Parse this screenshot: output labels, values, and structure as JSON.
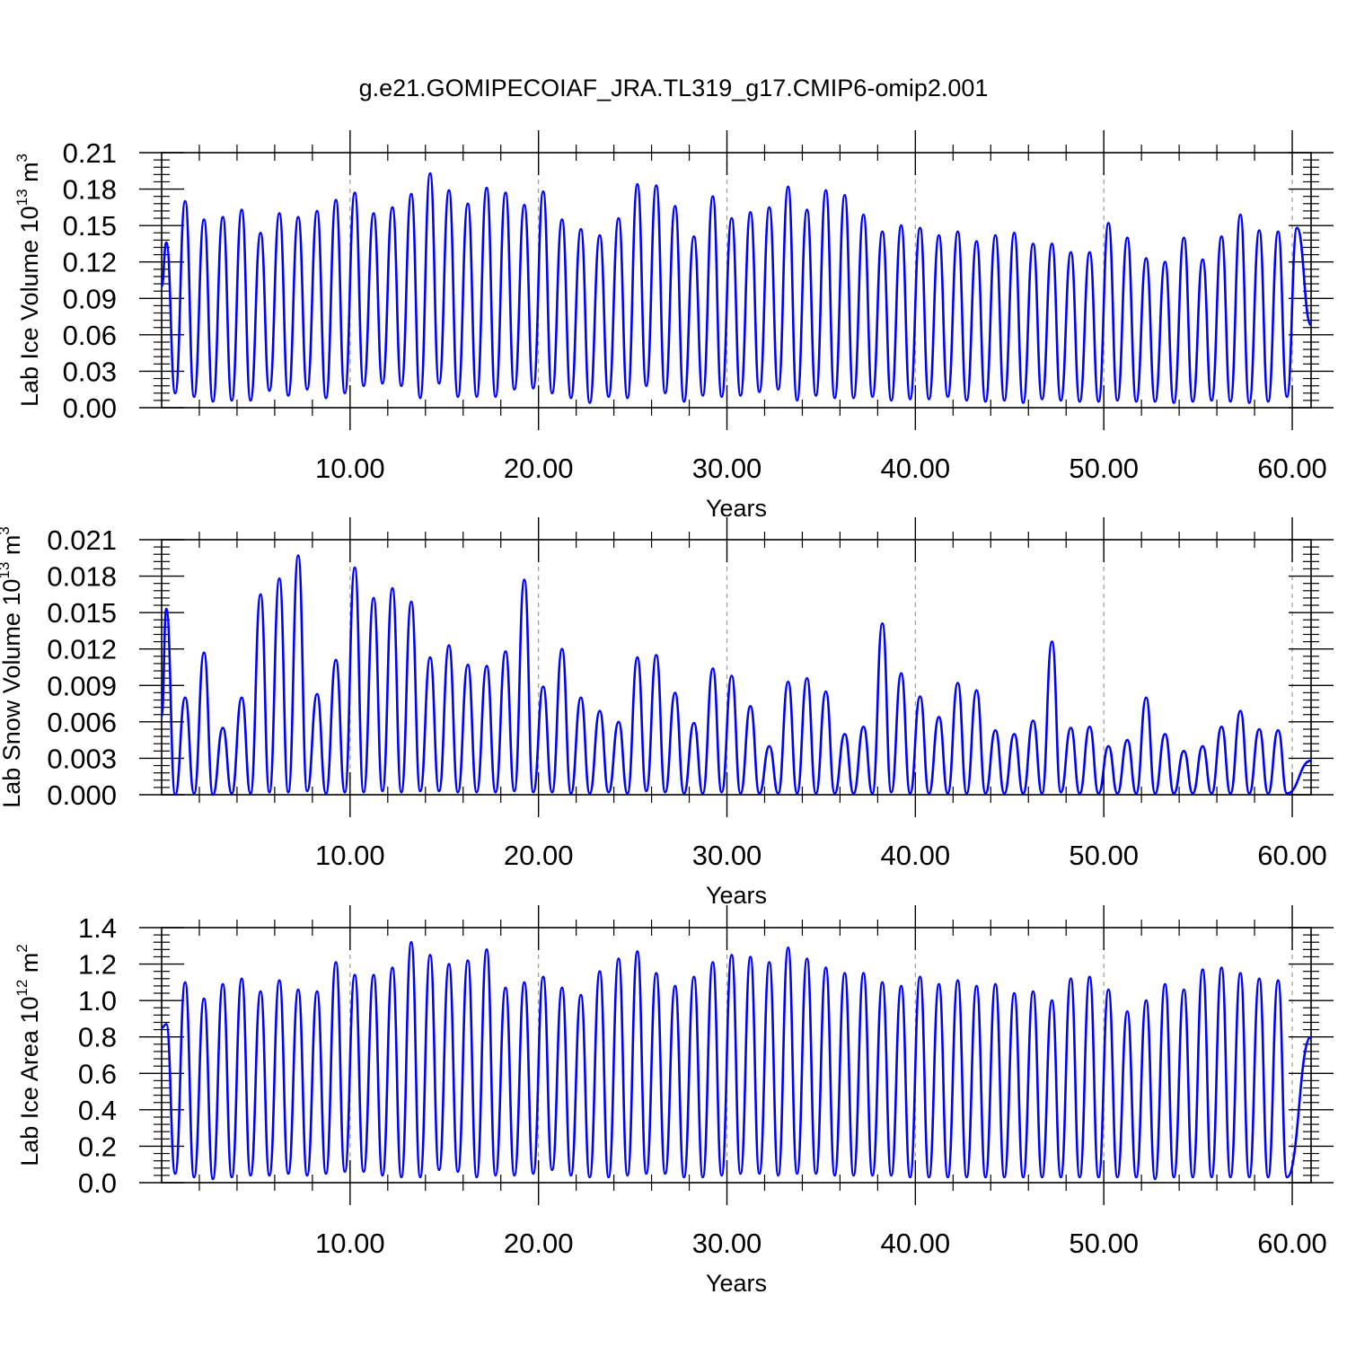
{
  "title": "g.e21.GOMIPECOIAF_JRA.TL319_g17.CMIP6-omip2.001",
  "chart_data": [
    {
      "type": "line",
      "xlabel": "Years",
      "ylabel": {
        "base": "Lab Ice Volume 10",
        "exp": "13",
        "unit": " m",
        "unit_exp": "3"
      },
      "xlim": [
        0.0,
        61.0
      ],
      "ylim": [
        0.0,
        0.21
      ],
      "x_ticks": [
        10,
        20,
        30,
        40,
        50,
        60
      ],
      "x_tick_labels": [
        "10.00",
        "20.00",
        "30.00",
        "40.00",
        "50.00",
        "60.00"
      ],
      "y_ticks": [
        0.0,
        0.03,
        0.06,
        0.09,
        0.12,
        0.15,
        0.18,
        0.21
      ],
      "y_tick_labels": [
        "0.00",
        "0.03",
        "0.06",
        "0.09",
        "0.12",
        "0.15",
        "0.18",
        "0.21"
      ],
      "grid": "x-dashed",
      "color": "#0000ff",
      "series": [
        {
          "cycle_start": 0.0,
          "cycle_length": 1.0,
          "x_end": 61.0,
          "first_value": 0.1,
          "last_value": 0.068,
          "peaks": [
            0.136,
            0.17,
            0.155,
            0.157,
            0.163,
            0.144,
            0.16,
            0.157,
            0.162,
            0.171,
            0.177,
            0.16,
            0.165,
            0.176,
            0.193,
            0.179,
            0.168,
            0.181,
            0.177,
            0.167,
            0.178,
            0.155,
            0.147,
            0.142,
            0.156,
            0.184,
            0.183,
            0.166,
            0.141,
            0.174,
            0.156,
            0.161,
            0.165,
            0.182,
            0.163,
            0.179,
            0.175,
            0.159,
            0.145,
            0.15,
            0.148,
            0.142,
            0.145,
            0.137,
            0.142,
            0.144,
            0.135,
            0.135,
            0.128,
            0.128,
            0.152,
            0.14,
            0.123,
            0.12,
            0.14,
            0.122,
            0.141,
            0.159,
            0.146,
            0.145,
            0.148
          ],
          "troughs": [
            0.012,
            0.009,
            0.005,
            0.006,
            0.006,
            0.014,
            0.01,
            0.015,
            0.008,
            0.012,
            0.018,
            0.02,
            0.018,
            0.008,
            0.02,
            0.009,
            0.009,
            0.009,
            0.015,
            0.016,
            0.012,
            0.008,
            0.004,
            0.009,
            0.008,
            0.018,
            0.012,
            0.005,
            0.01,
            0.009,
            0.01,
            0.013,
            0.015,
            0.006,
            0.01,
            0.008,
            0.008,
            0.009,
            0.006,
            0.007,
            0.007,
            0.009,
            0.006,
            0.005,
            0.006,
            0.004,
            0.007,
            0.006,
            0.005,
            0.005,
            0.006,
            0.005,
            0.005,
            0.004,
            0.005,
            0.006,
            0.005,
            0.004,
            0.005,
            0.009
          ]
        }
      ]
    },
    {
      "type": "line",
      "xlabel": "Years",
      "ylabel": {
        "base": "Lab Snow Volume 10",
        "exp": "13",
        "unit": " m",
        "unit_exp": "3"
      },
      "xlim": [
        0.0,
        61.0
      ],
      "ylim": [
        0.0,
        0.021
      ],
      "x_ticks": [
        10,
        20,
        30,
        40,
        50,
        60
      ],
      "x_tick_labels": [
        "10.00",
        "20.00",
        "30.00",
        "40.00",
        "50.00",
        "60.00"
      ],
      "y_ticks": [
        0.0,
        0.003,
        0.006,
        0.009,
        0.012,
        0.015,
        0.018,
        0.021
      ],
      "y_tick_labels": [
        "0.000",
        "0.003",
        "0.006",
        "0.009",
        "0.012",
        "0.015",
        "0.018",
        "0.021"
      ],
      "grid": "x-dashed",
      "color": "#0000ff",
      "series": [
        {
          "cycle_start": 0.0,
          "cycle_length": 1.0,
          "x_end": 61.0,
          "first_value": 0.0065,
          "last_value": 0.0028,
          "peaks": [
            0.0153,
            0.008,
            0.0117,
            0.0055,
            0.008,
            0.0165,
            0.0178,
            0.0197,
            0.0083,
            0.0111,
            0.0187,
            0.0162,
            0.017,
            0.0159,
            0.0113,
            0.0123,
            0.0107,
            0.0106,
            0.0118,
            0.0177,
            0.0089,
            0.012,
            0.008,
            0.0069,
            0.006,
            0.0113,
            0.0115,
            0.0084,
            0.0059,
            0.0104,
            0.0098,
            0.0073,
            0.004,
            0.0093,
            0.0096,
            0.0085,
            0.005,
            0.0056,
            0.0141,
            0.01,
            0.0081,
            0.0064,
            0.0092,
            0.0086,
            0.0053,
            0.005,
            0.0061,
            0.0126,
            0.0055,
            0.0056,
            0.004,
            0.0045,
            0.008,
            0.005,
            0.0036,
            0.004,
            0.0056,
            0.0069,
            0.0054,
            0.0053
          ],
          "troughs": [
            0.0,
            0.0001,
            0.0,
            0.0001,
            0.0001,
            0.0002,
            0.0002,
            0.0003,
            0.0001,
            0.0002,
            0.0002,
            0.0003,
            0.0002,
            0.0003,
            0.0003,
            0.0002,
            0.0002,
            0.0002,
            0.0003,
            0.0002,
            0.0002,
            0.0001,
            0.0001,
            0.0002,
            0.0001,
            0.0003,
            0.0002,
            0.0001,
            0.0001,
            0.0002,
            0.0001,
            0.0001,
            0.0001,
            0.0001,
            0.0001,
            0.0001,
            0.0001,
            0.0001,
            0.0002,
            0.0001,
            0.0001,
            0.0001,
            0.0001,
            0.0001,
            0.0001,
            0.0001,
            0.0001,
            0.0002,
            0.0001,
            0.0001,
            0.0001,
            0.0001,
            0.0001,
            0.0001,
            0.0001,
            0.0001,
            0.0001,
            0.0001,
            0.0001,
            0.0001
          ]
        }
      ]
    },
    {
      "type": "line",
      "xlabel": "Years",
      "ylabel": {
        "base": "Lab Ice Area 10",
        "exp": "12",
        "unit": " m",
        "unit_exp": "2"
      },
      "xlim": [
        0.0,
        61.0
      ],
      "ylim": [
        0.0,
        1.4
      ],
      "x_ticks": [
        10,
        20,
        30,
        40,
        50,
        60
      ],
      "x_tick_labels": [
        "10.00",
        "20.00",
        "30.00",
        "40.00",
        "50.00",
        "60.00"
      ],
      "y_ticks": [
        0.0,
        0.2,
        0.4,
        0.6,
        0.8,
        1.0,
        1.2,
        1.4
      ],
      "y_tick_labels": [
        "0.0",
        "0.2",
        "0.4",
        "0.6",
        "0.8",
        "1.0",
        "1.2",
        "1.4"
      ],
      "grid": "x-dashed",
      "color": "#0000ff",
      "series": [
        {
          "cycle_start": 0.0,
          "cycle_length": 1.0,
          "x_end": 61.0,
          "first_value": 0.85,
          "last_value": 0.8,
          "peaks": [
            0.87,
            1.1,
            1.01,
            1.09,
            1.12,
            1.05,
            1.11,
            1.06,
            1.05,
            1.21,
            1.14,
            1.14,
            1.18,
            1.32,
            1.25,
            1.2,
            1.22,
            1.28,
            1.07,
            1.1,
            1.13,
            1.07,
            1.03,
            1.16,
            1.23,
            1.27,
            1.15,
            1.08,
            1.13,
            1.21,
            1.25,
            1.24,
            1.21,
            1.29,
            1.23,
            1.18,
            1.15,
            1.15,
            1.1,
            1.08,
            1.13,
            1.09,
            1.11,
            1.08,
            1.09,
            1.04,
            1.05,
            1.0,
            1.12,
            1.13,
            1.06,
            0.94,
            1.0,
            1.09,
            1.06,
            1.17,
            1.18,
            1.15,
            1.12,
            1.11
          ],
          "troughs": [
            0.05,
            0.03,
            0.02,
            0.03,
            0.04,
            0.04,
            0.05,
            0.04,
            0.05,
            0.06,
            0.06,
            0.04,
            0.03,
            0.03,
            0.07,
            0.06,
            0.03,
            0.04,
            0.04,
            0.05,
            0.07,
            0.04,
            0.03,
            0.03,
            0.04,
            0.05,
            0.05,
            0.03,
            0.03,
            0.04,
            0.05,
            0.05,
            0.04,
            0.05,
            0.05,
            0.04,
            0.04,
            0.04,
            0.04,
            0.03,
            0.03,
            0.03,
            0.03,
            0.03,
            0.03,
            0.03,
            0.03,
            0.03,
            0.03,
            0.03,
            0.03,
            0.03,
            0.02,
            0.03,
            0.03,
            0.03,
            0.03,
            0.03,
            0.03,
            0.03
          ]
        }
      ]
    }
  ]
}
